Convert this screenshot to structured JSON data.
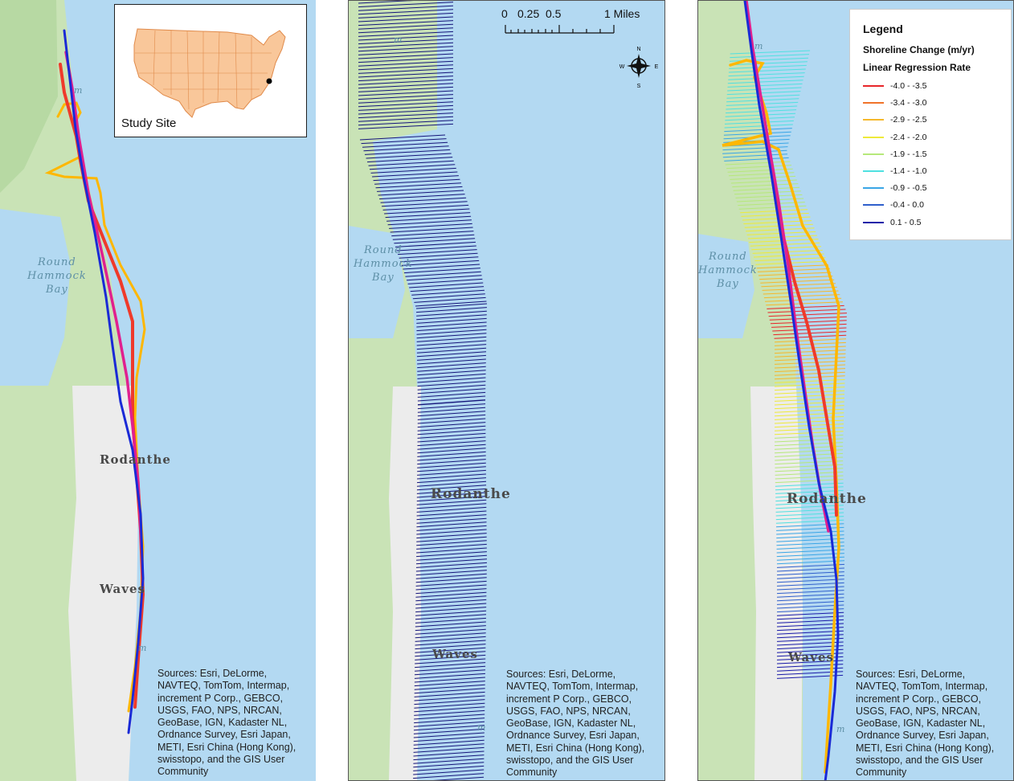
{
  "panels": [
    {
      "id": "shoreline-panel",
      "places": {
        "rodanthe": "Rodanthe",
        "waves": "Waves",
        "round_hammock_bay": [
          "Round",
          "Hammock",
          "Bay"
        ],
        "m1": "m",
        "m2": "m"
      },
      "inset": {
        "label": "Study Site"
      },
      "sources": "Sources: Esri, DeLorme, NAVTEQ, TomTom, Intermap, increment P Corp., GEBCO, USGS, FAO, NPS, NRCAN, GeoBase, IGN, Kadaster NL, Ordnance Survey, Esri Japan, METI, Esri China (Hong Kong), swisstopo, and the GIS User Community"
    },
    {
      "id": "transects-panel",
      "places": {
        "rodanthe": "Rodanthe",
        "waves": "Waves",
        "round_hammock_bay": [
          "Round",
          "Hammock",
          "Bay"
        ],
        "m1": "m",
        "m2": "m"
      },
      "scalebar": {
        "ticks": [
          "0",
          "0.25",
          "0.5",
          "1 Miles"
        ]
      },
      "compass": {
        "n": "N",
        "s": "S",
        "e": "E",
        "w": "W"
      },
      "sources": "Sources: Esri, DeLorme, NAVTEQ, TomTom, Intermap, increment P Corp., GEBCO, USGS, FAO, NPS, NRCAN, GeoBase, IGN, Kadaster NL, Ordnance Survey, Esri Japan, METI, Esri China (Hong Kong), swisstopo, and the GIS User Community"
    },
    {
      "id": "rates-panel",
      "places": {
        "rodanthe": "Rodanthe",
        "waves": "Waves",
        "round_hammock_bay": [
          "Round",
          "Hammock",
          "Bay"
        ],
        "m1": "m",
        "m2": "m"
      },
      "sources": "Sources: Esri, DeLorme, NAVTEQ, TomTom, Intermap, increment P Corp., GEBCO, USGS, FAO, NPS, NRCAN, GeoBase, IGN, Kadaster NL, Ordnance Survey, Esri Japan, METI, Esri China (Hong Kong), swisstopo, and the GIS User Community"
    }
  ],
  "legend": {
    "title": "Legend",
    "subtitle": "Shoreline Change (m/yr)",
    "method": "Linear Regression Rate",
    "classes": [
      {
        "label": "-4.0 - -3.5",
        "color": "#e8262a"
      },
      {
        "label": "-3.4 - -3.0",
        "color": "#f0732a"
      },
      {
        "label": "-2.9 - -2.5",
        "color": "#f5b82c"
      },
      {
        "label": "-2.4 - -2.0",
        "color": "#eeea3a"
      },
      {
        "label": "-1.9 - -1.5",
        "color": "#b6e87a"
      },
      {
        "label": "-1.4 - -1.0",
        "color": "#4fe0e0"
      },
      {
        "label": "-0.9 - -0.5",
        "color": "#3aa6e6"
      },
      {
        "label": "-0.4 - 0.0",
        "color": "#2f5fcc"
      },
      {
        "label": "0.1 - 0.5",
        "color": "#1a1aa8"
      }
    ]
  },
  "colors": {
    "water": "#b3d9f2",
    "land": "#c9e3b6",
    "urban": "#ececec",
    "us_fill": "#f9c79a",
    "us_border": "#e08a4a",
    "transect": "#14147a",
    "shoreline_blue": "#1a2ad6",
    "shoreline_magenta": "#e0208f",
    "shoreline_red": "#ef3a2a",
    "shoreline_orange": "#ffb700"
  }
}
